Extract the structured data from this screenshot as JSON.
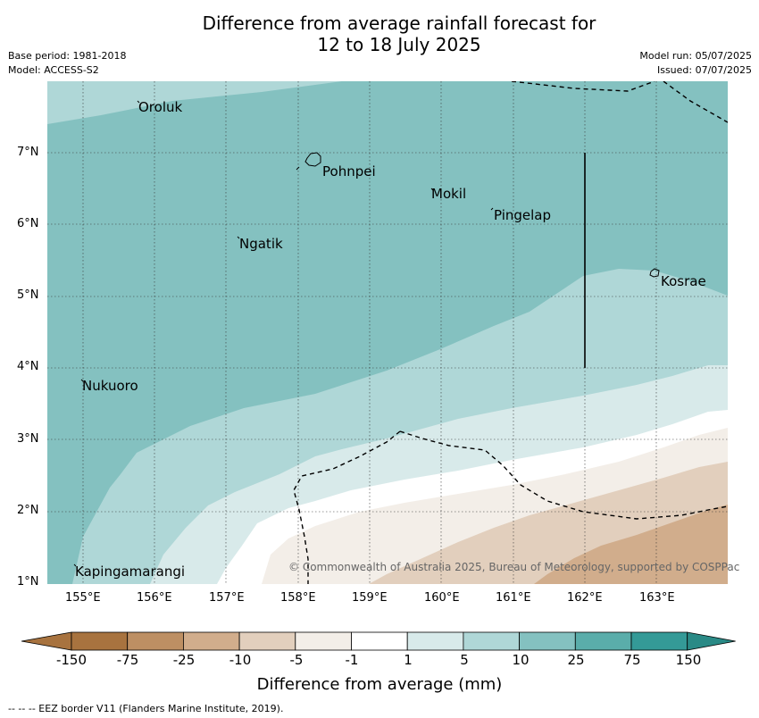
{
  "title_line1": "Difference from average rainfall forecast for",
  "title_line2": "12 to 18 July 2025",
  "meta": {
    "base_period": "Base period: 1981-2018",
    "model": "Model: ACCESS-S2",
    "model_run": "Model run: 05/07/2025",
    "issued": "Issued: 07/07/2025"
  },
  "x_ticks": [
    "155°E",
    "156°E",
    "157°E",
    "158°E",
    "159°E",
    "160°E",
    "161°E",
    "162°E",
    "163°E"
  ],
  "y_ticks": [
    "7°N",
    "6°N",
    "5°N",
    "4°N",
    "3°N",
    "2°N",
    "1°N"
  ],
  "places": [
    {
      "name": "Oroluk"
    },
    {
      "name": "Pohnpei"
    },
    {
      "name": "Mokil"
    },
    {
      "name": "Pingelap"
    },
    {
      "name": "Ngatik"
    },
    {
      "name": "Kosrae"
    },
    {
      "name": "Nukuoro"
    },
    {
      "name": "Kapingamarangi"
    }
  ],
  "copyright": "© Commonwealth of Australia 2025, Bureau of Meteorology, supported by COSPPac",
  "colorbar": {
    "labels": [
      "-150",
      "-75",
      "-25",
      "-10",
      "-5",
      "-1",
      "1",
      "5",
      "10",
      "25",
      "75",
      "150"
    ],
    "colors": [
      "#a8733f",
      "#bd8f63",
      "#d1ad8c",
      "#e2cfbd",
      "#f3eee8",
      "#ffffff",
      "#d8eaea",
      "#afd7d7",
      "#84c1c0",
      "#5aadaa",
      "#349a97"
    ],
    "label": "Difference from average (mm)"
  },
  "footnote": "--  --  -- EEZ border V11 (Flanders Marine Institute, 2019).",
  "colors": {
    "c10_25": "#84c1c0",
    "c5_10": "#afd7d7",
    "c1_5": "#d8eaea",
    "cm1_1": "#ffffff",
    "cm5_m1": "#f3eee8",
    "cm10_m5": "#e2cfbd",
    "cm25_m10": "#d1ad8c"
  }
}
